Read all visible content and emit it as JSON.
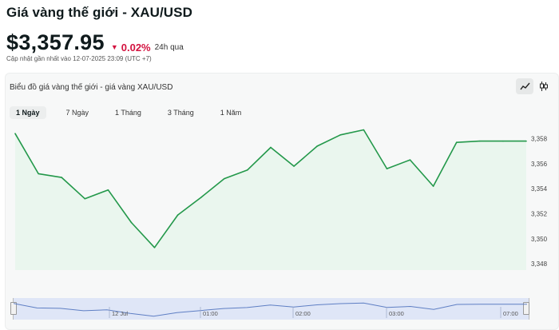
{
  "header": {
    "title": "Giá vàng thế giới - XAU/USD",
    "price": "$3,357.95",
    "change": "0.02%",
    "period": "24h qua",
    "updated": "Cập nhật gần nhất vào 12-07-2025 23:09 (UTC +7)"
  },
  "chart_panel": {
    "title": "Biểu đồ giá vàng thế giới - giá vàng XAU/USD",
    "tabs": [
      "1 Ngày",
      "7 Ngày",
      "1 Tháng",
      "3 Tháng",
      "1 Năm"
    ],
    "active_tab": "1 Ngày",
    "tools": [
      "line-chart-icon",
      "candlestick-icon"
    ]
  },
  "colors": {
    "line": "#23984a",
    "area": "#eaf6ee",
    "change": "#d3123f",
    "navigator": "#dfe6f7"
  },
  "chart_data": {
    "type": "area",
    "title": "",
    "xlabel": "",
    "ylabel": "",
    "ylim": [
      3347.5,
      3359.5
    ],
    "yticks": [
      "3,358",
      "3,356",
      "3,354",
      "3,352",
      "3,350",
      "3,348"
    ],
    "values": [
      3358.4,
      3355.2,
      3354.9,
      3353.2,
      3353.9,
      3351.3,
      3349.3,
      3351.9,
      3353.3,
      3354.8,
      3355.5,
      3357.3,
      3355.8,
      3357.4,
      3358.3,
      3358.7,
      3355.6,
      3356.3,
      3354.2,
      3357.7,
      3357.8,
      3357.8,
      3357.8
    ],
    "navigator": {
      "labels": [
        "12 Jul",
        "01:00",
        "02:00",
        "03:00",
        "07:00"
      ]
    }
  }
}
